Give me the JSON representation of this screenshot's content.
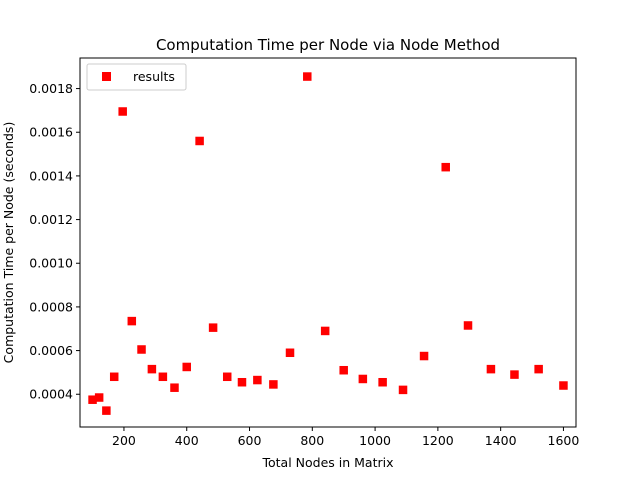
{
  "chart_data": {
    "type": "scatter",
    "title": "Computation Time per Node via Node Method",
    "xlabel": "Total Nodes in Matrix",
    "ylabel": "Computation Time per Node (seconds)",
    "xlim": [
      60,
      1640
    ],
    "ylim": [
      0.00025,
      0.00194
    ],
    "xticks": [
      200,
      400,
      600,
      800,
      1000,
      1200,
      1400,
      1600
    ],
    "yticks": [
      0.0004,
      0.0006,
      0.0008,
      0.001,
      0.0012,
      0.0014,
      0.0016,
      0.0018
    ],
    "ytick_labels": [
      "0.0004",
      "0.0006",
      "0.0008",
      "0.0010",
      "0.0012",
      "0.0014",
      "0.0016",
      "0.0018"
    ],
    "grid": false,
    "legend_position": "top-left",
    "series": [
      {
        "name": "results",
        "marker": "square",
        "color": "#ff0000",
        "points": [
          [
            100,
            0.000375
          ],
          [
            121,
            0.000385
          ],
          [
            144,
            0.000325
          ],
          [
            169,
            0.00048
          ],
          [
            196,
            0.001695
          ],
          [
            225,
            0.000735
          ],
          [
            256,
            0.000605
          ],
          [
            289,
            0.000515
          ],
          [
            324,
            0.00048
          ],
          [
            361,
            0.00043
          ],
          [
            400,
            0.000525
          ],
          [
            441,
            0.00156
          ],
          [
            484,
            0.000705
          ],
          [
            529,
            0.00048
          ],
          [
            576,
            0.000455
          ],
          [
            625,
            0.000465
          ],
          [
            676,
            0.000445
          ],
          [
            729,
            0.00059
          ],
          [
            784,
            0.001855
          ],
          [
            841,
            0.00069
          ],
          [
            900,
            0.00051
          ],
          [
            961,
            0.00047
          ],
          [
            1024,
            0.000455
          ],
          [
            1089,
            0.00042
          ],
          [
            1156,
            0.000575
          ],
          [
            1225,
            0.00144
          ],
          [
            1296,
            0.000715
          ],
          [
            1369,
            0.000515
          ],
          [
            1444,
            0.00049
          ],
          [
            1521,
            0.000515
          ],
          [
            1600,
            0.00044
          ]
        ]
      }
    ]
  }
}
